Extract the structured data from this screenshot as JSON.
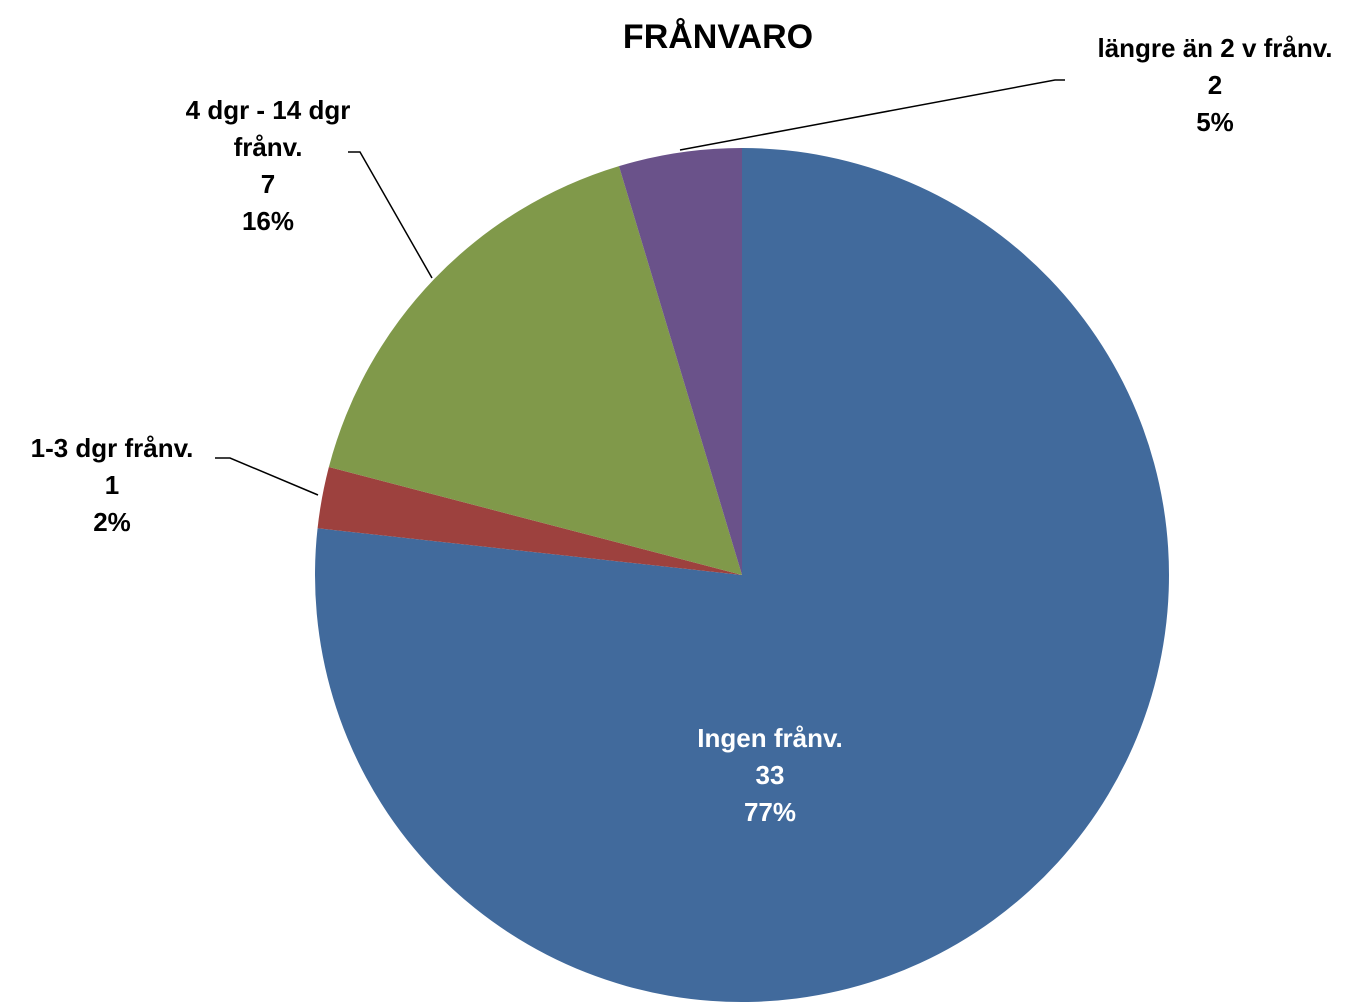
{
  "chart_data": {
    "type": "pie",
    "title": "FRÅNVARO",
    "categories": [
      "Ingen frånv.",
      "1-3 dgr frånv.",
      "4 dgr - 14 dgr frånv.",
      "längre än 2 v frånv."
    ],
    "values": [
      33,
      1,
      7,
      2
    ],
    "percent_labels": [
      "77%",
      "2%",
      "16%",
      "5%"
    ],
    "colors": [
      "#416a9c",
      "#9d413e",
      "#80994a",
      "#6a528a"
    ]
  }
}
